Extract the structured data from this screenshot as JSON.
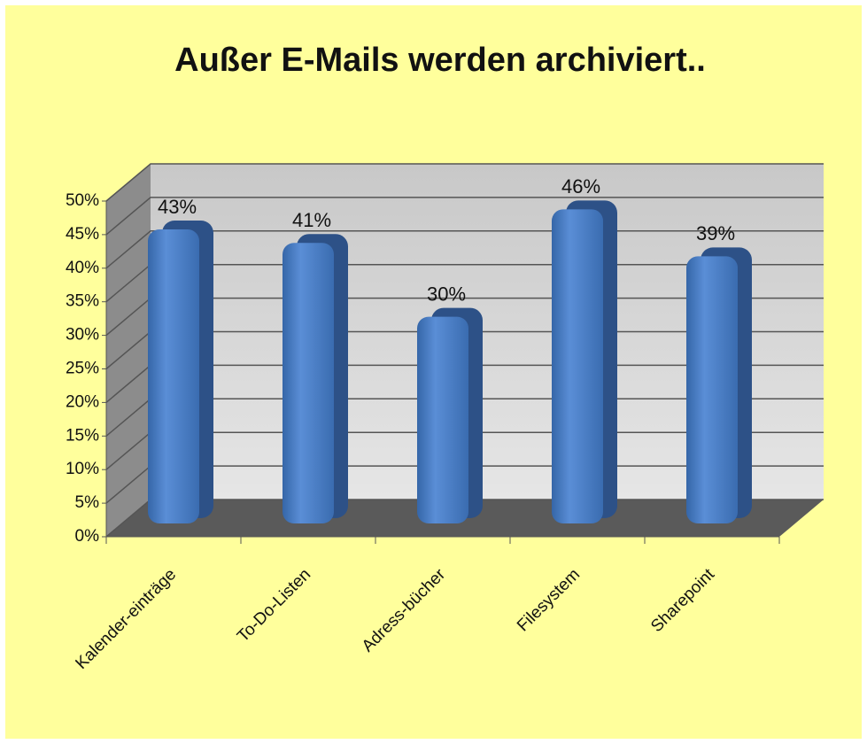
{
  "chart_data": {
    "type": "bar3d",
    "title": "Außer E-Mails  werden archiviert..",
    "categories": [
      "Kalender-einträge",
      "To-Do-Listen",
      "Adress-bücher",
      "Filesystem",
      "Sharepoint"
    ],
    "values": [
      43,
      41,
      30,
      46,
      39
    ],
    "value_labels": [
      "43%",
      "41%",
      "30%",
      "46%",
      "39%"
    ],
    "color": "#4a7cc4",
    "ylim": [
      0,
      50
    ],
    "yticks": [
      {
        "value": 0,
        "label": "0%"
      },
      {
        "value": 5,
        "label": "5%"
      },
      {
        "value": 10,
        "label": "10%"
      },
      {
        "value": 15,
        "label": "15%"
      },
      {
        "value": 20,
        "label": "20%"
      },
      {
        "value": 25,
        "label": "25%"
      },
      {
        "value": 30,
        "label": "30%"
      },
      {
        "value": 35,
        "label": "35%"
      },
      {
        "value": 40,
        "label": "40%"
      },
      {
        "value": 45,
        "label": "45%"
      },
      {
        "value": 50,
        "label": "50%"
      }
    ],
    "grid": true
  }
}
